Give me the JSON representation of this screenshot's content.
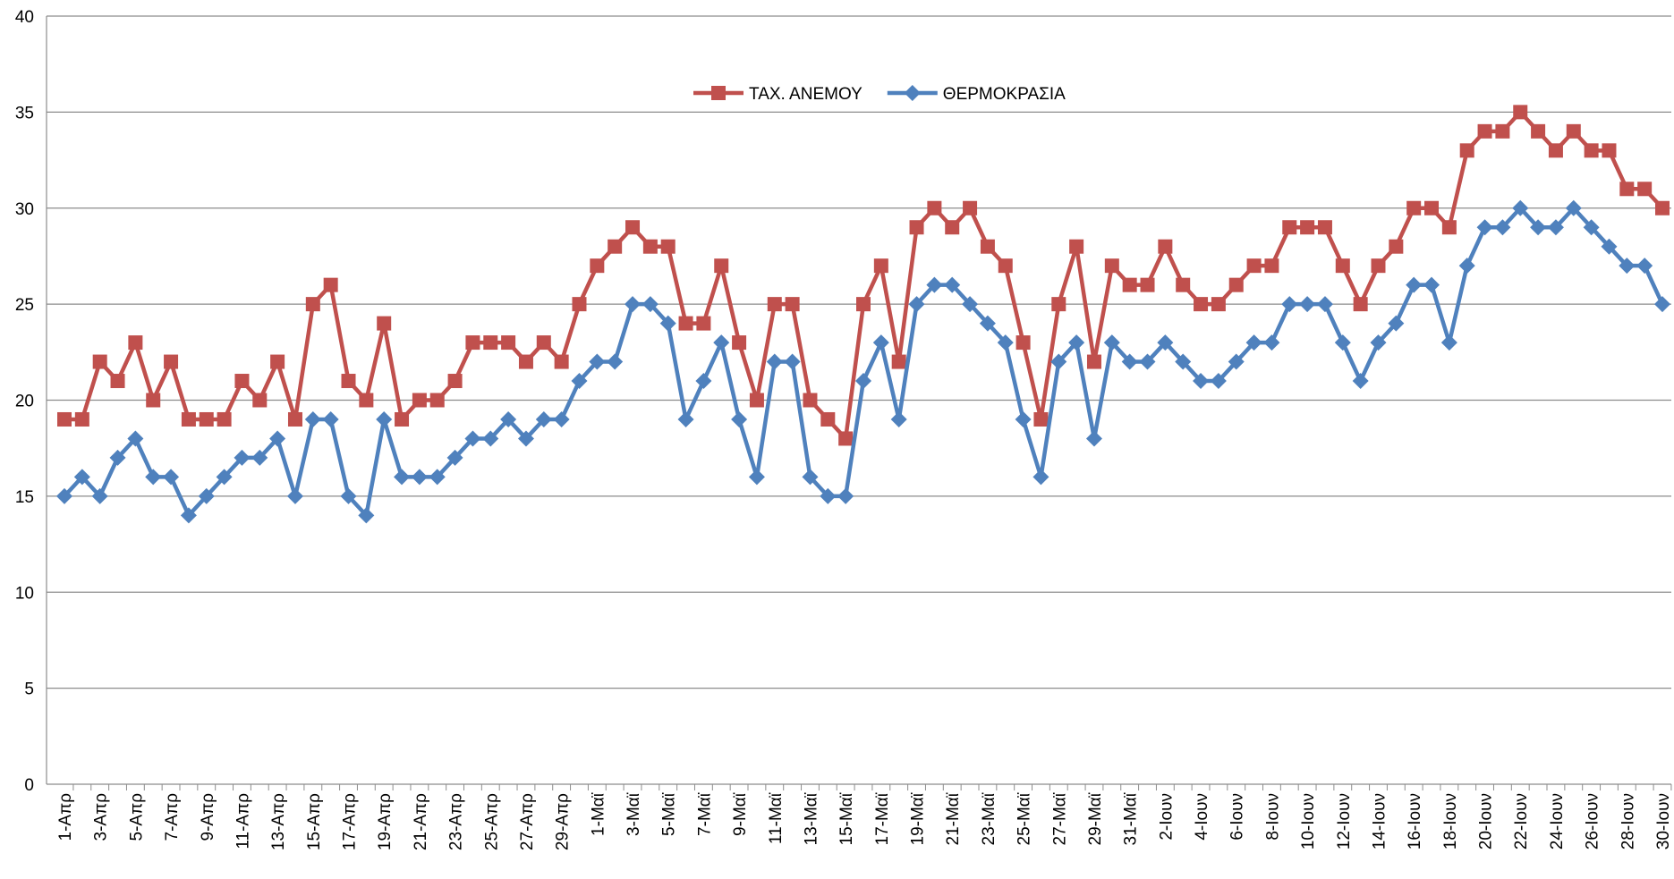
{
  "chart_data": {
    "type": "line",
    "categories": [
      "1-Απρ",
      null,
      "3-Απρ",
      null,
      "5-Απρ",
      null,
      "7-Απρ",
      null,
      "9-Απρ",
      null,
      "11-Απρ",
      null,
      "13-Απρ",
      null,
      "15-Απρ",
      null,
      "17-Απρ",
      null,
      "19-Απρ",
      null,
      "21-Απρ",
      null,
      "23-Απρ",
      null,
      "25-Απρ",
      null,
      "27-Απρ",
      null,
      "29-Απρ",
      null,
      "1-Μαϊ",
      null,
      "3-Μαϊ",
      null,
      "5-Μαϊ",
      null,
      "7-Μαϊ",
      null,
      "9-Μαϊ",
      null,
      "11-Μαϊ",
      null,
      "13-Μαϊ",
      null,
      "15-Μαϊ",
      null,
      "17-Μαϊ",
      null,
      "19-Μαϊ",
      null,
      "21-Μαϊ",
      null,
      "23-Μαϊ",
      null,
      "25-Μαϊ",
      null,
      "27-Μαϊ",
      null,
      "29-Μαϊ",
      null,
      "31-Μαϊ",
      null,
      "2-Ιουν",
      null,
      "4-Ιουν",
      null,
      "6-Ιουν",
      null,
      "8-Ιουν",
      null,
      "10-Ιουν",
      null,
      "12-Ιουν",
      null,
      "14-Ιουν",
      null,
      "16-Ιουν",
      null,
      "18-Ιουν",
      null,
      "20-Ιουν",
      null,
      "22-Ιουν",
      null,
      "24-Ιουν",
      null,
      "26-Ιουν",
      null,
      "28-Ιουν",
      null,
      "30-Ιουν"
    ],
    "series": [
      {
        "name": "ΤΑΧ. ΑΝΕΜΟΥ",
        "color": "#c0504d",
        "marker": "square",
        "values": [
          19,
          19,
          22,
          21,
          23,
          20,
          22,
          19,
          19,
          19,
          21,
          20,
          22,
          19,
          25,
          26,
          21,
          20,
          24,
          19,
          20,
          20,
          21,
          23,
          23,
          23,
          22,
          23,
          22,
          25,
          27,
          28,
          29,
          28,
          28,
          24,
          24,
          27,
          23,
          20,
          25,
          25,
          20,
          19,
          18,
          25,
          27,
          22,
          29,
          30,
          29,
          30,
          28,
          27,
          23,
          19,
          25,
          28,
          22,
          27,
          26,
          26,
          28,
          26,
          25,
          25,
          26,
          27,
          27,
          29,
          29,
          29,
          27,
          25,
          27,
          28,
          30,
          30,
          29,
          33,
          34,
          34,
          35,
          34,
          33,
          34,
          33,
          33,
          31,
          31,
          30
        ]
      },
      {
        "name": "ΘΕΡΜΟΚΡΑΣΙΑ",
        "color": "#4f81bd",
        "marker": "diamond",
        "values": [
          15,
          16,
          15,
          17,
          18,
          16,
          16,
          14,
          15,
          16,
          17,
          17,
          18,
          15,
          19,
          19,
          15,
          14,
          19,
          16,
          16,
          16,
          17,
          18,
          18,
          19,
          18,
          19,
          19,
          21,
          22,
          22,
          25,
          25,
          24,
          19,
          21,
          23,
          19,
          16,
          22,
          22,
          16,
          15,
          15,
          21,
          23,
          19,
          25,
          26,
          26,
          25,
          24,
          23,
          19,
          16,
          22,
          23,
          18,
          23,
          22,
          22,
          23,
          22,
          21,
          21,
          22,
          23,
          23,
          25,
          25,
          25,
          23,
          21,
          23,
          24,
          26,
          26,
          23,
          27,
          29,
          29,
          30,
          29,
          29,
          30,
          29,
          28,
          27,
          27,
          25
        ]
      }
    ],
    "ylim": [
      0,
      40
    ],
    "yticks": [
      0,
      5,
      10,
      15,
      20,
      25,
      30,
      35,
      40
    ],
    "grid": true,
    "legend": "top"
  }
}
